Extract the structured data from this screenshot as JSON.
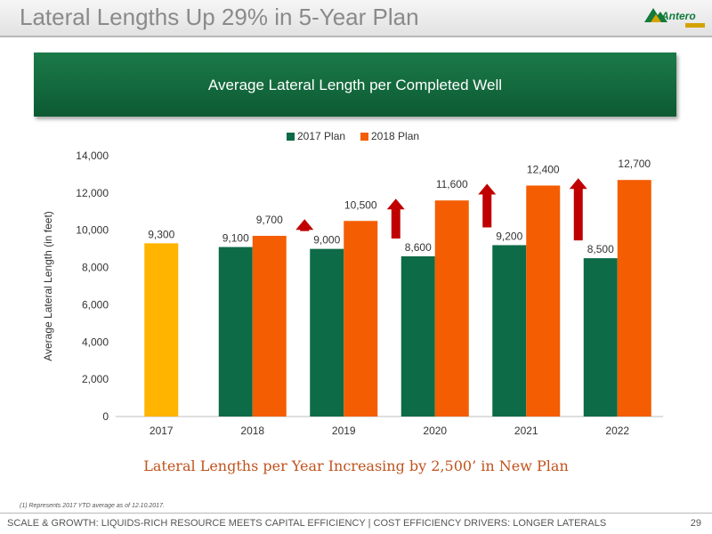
{
  "slide": {
    "title": "Lateral Lengths Up 29% in 5-Year Plan",
    "logo_text": "Antero",
    "banner": "Average Lateral Length per Completed Well",
    "subcaption": "Lateral Lengths per Year Increasing by 2,500’ in New Plan",
    "footnote": "(1)     Represents 2017 YTD average as of 12.10.2017.",
    "footer": "SCALE & GROWTH: LIQUIDS-RICH RESOURCE MEETS CAPITAL EFFICIENCY | COST EFFICIENCY DRIVERS: LONGER LATERALS",
    "page_number": "29"
  },
  "colors": {
    "plan_2017": "#0d6b47",
    "plan_2018": "#f45d01",
    "actual_2017": "#ffb400",
    "arrow": "#c00000",
    "accent": "#127a3a"
  },
  "chart_data": {
    "type": "bar",
    "categories": [
      "2017",
      "2018",
      "2019",
      "2020",
      "2021",
      "2022"
    ],
    "series": [
      {
        "name": "2017 Plan",
        "values": [
          9300,
          9100,
          9000,
          8600,
          9200,
          8500
        ]
      },
      {
        "name": "2018 Plan",
        "values": [
          null,
          9700,
          10500,
          11600,
          12400,
          12700
        ]
      }
    ],
    "data_labels": {
      "2017 Plan": [
        "9,300",
        "9,100",
        "9,000",
        "8,600",
        "9,200",
        "8,500"
      ],
      "2018 Plan": [
        "",
        "9,700",
        "10,500",
        "11,600",
        "12,400",
        "12,700"
      ]
    },
    "title": "",
    "xlabel": "",
    "ylabel": "Average Lateral Length (in feet)",
    "ylim": [
      0,
      14000
    ],
    "yticks": [
      "0",
      "2,000",
      "4,000",
      "6,000",
      "8,000",
      "10,000",
      "12,000",
      "14,000"
    ],
    "legend": "top",
    "grid": false,
    "increase_arrows_on": [
      "2019",
      "2020",
      "2021",
      "2022"
    ]
  }
}
